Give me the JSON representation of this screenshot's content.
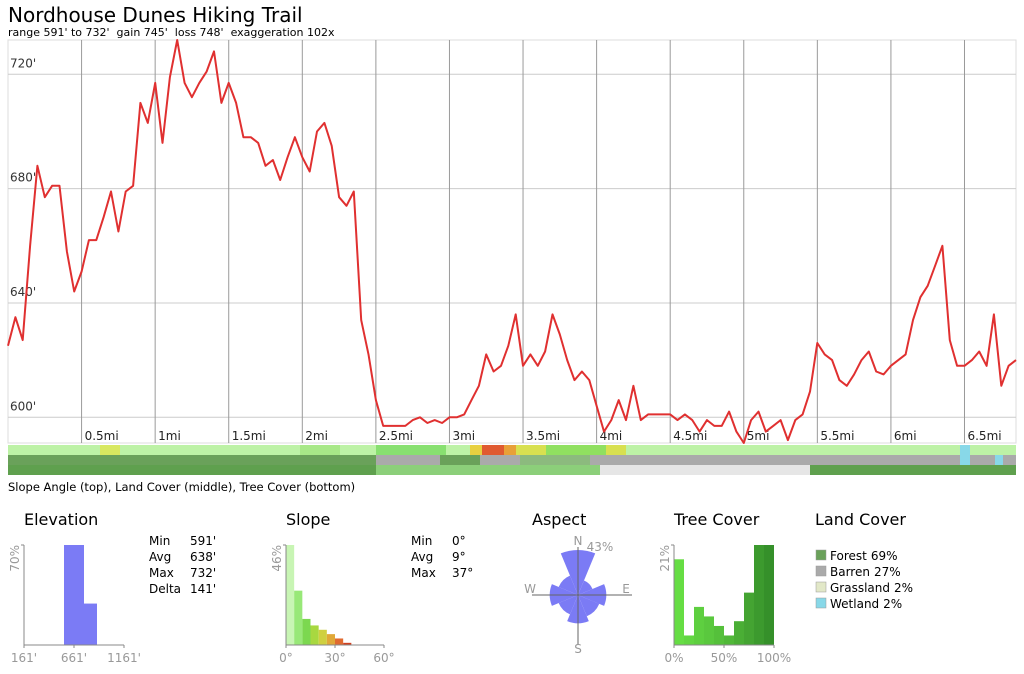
{
  "chart_data": [
    {
      "type": "line",
      "title": "Nordhouse Dunes Hiking Trail",
      "subtitle": "range 591' to 732'  gain 745'  loss 748'  exaggeration 102x",
      "caption": "Slope Angle (top), Land Cover (middle), Tree Cover (bottom)",
      "color": "#e03030",
      "x": [
        0,
        0.05,
        0.1,
        0.15,
        0.2,
        0.25,
        0.3,
        0.35,
        0.4,
        0.45,
        0.5,
        0.55,
        0.6,
        0.65,
        0.7,
        0.75,
        0.8,
        0.85,
        0.9,
        0.95,
        1,
        1.05,
        1.1,
        1.15,
        1.2,
        1.25,
        1.3,
        1.35,
        1.4,
        1.45,
        1.5,
        1.55,
        1.6,
        1.65,
        1.7,
        1.75,
        1.8,
        1.85,
        1.9,
        1.95,
        2,
        2.05,
        2.1,
        2.15,
        2.2,
        2.25,
        2.3,
        2.35,
        2.4,
        2.45,
        2.5,
        2.55,
        2.6,
        2.65,
        2.7,
        2.75,
        2.8,
        2.85,
        2.9,
        2.95,
        3,
        3.05,
        3.1,
        3.15,
        3.2,
        3.25,
        3.3,
        3.35,
        3.4,
        3.45,
        3.5,
        3.55,
        3.6,
        3.65,
        3.7,
        3.75,
        3.8,
        3.85,
        3.9,
        3.95,
        4,
        4.05,
        4.1,
        4.15,
        4.2,
        4.25,
        4.3,
        4.35,
        4.4,
        4.45,
        4.5,
        4.55,
        4.6,
        4.65,
        4.7,
        4.75,
        4.8,
        4.85,
        4.9,
        4.95,
        5,
        5.05,
        5.1,
        5.15,
        5.2,
        5.25,
        5.3,
        5.35,
        5.4,
        5.45,
        5.5,
        5.55,
        5.6,
        5.65,
        5.7,
        5.75,
        5.8,
        5.85,
        5.9,
        5.95,
        6,
        6.05,
        6.1,
        6.15,
        6.2,
        6.25,
        6.3,
        6.35,
        6.4,
        6.45,
        6.5,
        6.55,
        6.6,
        6.65,
        6.7,
        6.75,
        6.8,
        6.85
      ],
      "values": [
        625,
        635,
        627,
        660,
        688,
        677,
        681,
        681,
        658,
        644,
        651,
        662,
        662,
        670,
        679,
        665,
        679,
        681,
        710,
        703,
        717,
        696,
        719,
        732,
        717,
        712,
        717,
        721,
        728,
        710,
        717,
        710,
        698,
        698,
        696,
        688,
        690,
        683,
        691,
        698,
        691,
        686,
        700,
        703,
        695,
        677,
        674,
        679,
        634,
        622,
        606,
        597,
        597,
        597,
        597,
        599,
        600,
        598,
        599,
        598,
        600,
        600,
        601,
        606,
        611,
        622,
        616,
        618,
        625,
        636,
        618,
        622,
        618,
        623,
        636,
        629,
        620,
        613,
        616,
        613,
        604,
        595,
        599,
        606,
        599,
        611,
        599,
        601,
        601,
        601,
        601,
        599,
        601,
        599,
        595,
        599,
        597,
        597,
        602,
        595,
        591,
        599,
        602,
        595,
        597,
        599,
        592,
        599,
        601,
        609,
        626,
        622,
        620,
        613,
        611,
        615,
        620,
        623,
        616,
        615,
        618,
        620,
        622,
        634,
        642,
        646,
        653,
        660,
        627,
        618,
        618,
        620,
        623,
        618,
        636,
        611,
        618,
        620
      ],
      "xlim": [
        0,
        6.85
      ],
      "xticks": [
        {
          "value": 0.5,
          "label": "0.5mi"
        },
        {
          "value": 1,
          "label": "1mi"
        },
        {
          "value": 1.5,
          "label": "1.5mi"
        },
        {
          "value": 2,
          "label": "2mi"
        },
        {
          "value": 2.5,
          "label": "2.5mi"
        },
        {
          "value": 3,
          "label": "3mi"
        },
        {
          "value": 3.5,
          "label": "3.5mi"
        },
        {
          "value": 4,
          "label": "4mi"
        },
        {
          "value": 4.5,
          "label": "4.5mi"
        },
        {
          "value": 5,
          "label": "5mi"
        },
        {
          "value": 5.5,
          "label": "5.5mi"
        },
        {
          "value": 6,
          "label": "6mi"
        },
        {
          "value": 6.5,
          "label": "6.5mi"
        }
      ],
      "ylim": [
        591,
        732
      ],
      "yticks": [
        {
          "value": 600,
          "label": "600'"
        },
        {
          "value": 640,
          "label": "640'"
        },
        {
          "value": 680,
          "label": "680'"
        },
        {
          "value": 720,
          "label": "720'"
        }
      ],
      "grid": true
    },
    {
      "type": "histogram",
      "title": "Elevation",
      "color": "#7b7bf5",
      "bins": [
        561,
        761,
        891
      ],
      "values": [
        70,
        29
      ],
      "xlim": [
        161,
        1161
      ],
      "xticks": [
        {
          "value": 161,
          "label": "161'"
        },
        {
          "value": 661,
          "label": "661'"
        },
        {
          "value": 1161,
          "label": "1161'"
        }
      ],
      "ylim": [
        0,
        70
      ],
      "yticks": [
        {
          "value": 70,
          "label": "70%"
        }
      ],
      "stats": [
        {
          "label": "Min",
          "value": "591'"
        },
        {
          "label": "Avg",
          "value": "638'"
        },
        {
          "label": "Max",
          "value": "732'"
        },
        {
          "label": "Delta",
          "value": "141'"
        }
      ]
    },
    {
      "type": "histogram",
      "title": "Slope",
      "colors": [
        "#c8f5b4",
        "#98e878",
        "#7cd850",
        "#a8d840",
        "#cfd040",
        "#e0a838",
        "#e06a30",
        "#d04020"
      ],
      "bins": [
        0,
        5,
        10,
        15,
        20,
        25,
        30,
        35,
        40
      ],
      "values": [
        46,
        25,
        12,
        9,
        7,
        5,
        3,
        1
      ],
      "xlim": [
        0,
        60
      ],
      "xticks": [
        {
          "value": 0,
          "label": "0°"
        },
        {
          "value": 30,
          "label": "30°"
        },
        {
          "value": 60,
          "label": "60°"
        }
      ],
      "ylim": [
        0,
        46
      ],
      "yticks": [
        {
          "value": 46,
          "label": "46%"
        }
      ],
      "stats": [
        {
          "label": "Min",
          "value": "0°"
        },
        {
          "label": "Avg",
          "value": "9°"
        },
        {
          "label": "Max",
          "value": "37°"
        }
      ]
    },
    {
      "type": "rose",
      "title": "Aspect",
      "color": "#7b7bf5",
      "x": [
        0,
        45,
        90,
        135,
        180,
        225,
        270,
        315
      ],
      "values": [
        43,
        15,
        27,
        22,
        27,
        20,
        27,
        20
      ],
      "xticks": [
        {
          "value": 0,
          "label": "N"
        },
        {
          "value": 90,
          "label": "E"
        },
        {
          "value": 180,
          "label": "S"
        },
        {
          "value": 270,
          "label": "W"
        }
      ],
      "rlim": [
        0,
        43
      ],
      "rticks": [
        {
          "value": 43,
          "label": "43%"
        }
      ]
    },
    {
      "type": "histogram",
      "title": "Tree Cover",
      "colors": [
        "#66dd44",
        "#62d642",
        "#5ecf40",
        "#5ac83e",
        "#55c03b",
        "#50b838",
        "#4aae35",
        "#44a432",
        "#3c9a2e",
        "#35902a"
      ],
      "bins": [
        0,
        10,
        20,
        30,
        40,
        50,
        60,
        70,
        80,
        90,
        100
      ],
      "values": [
        18,
        2,
        8,
        6,
        4,
        2,
        5,
        11,
        21,
        21
      ],
      "xlim": [
        0,
        100
      ],
      "xticks": [
        {
          "value": 0,
          "label": "0%"
        },
        {
          "value": 50,
          "label": "50%"
        },
        {
          "value": 100,
          "label": "100%"
        }
      ],
      "ylim": [
        0,
        21
      ],
      "yticks": [
        {
          "value": 21,
          "label": "21%"
        }
      ]
    },
    {
      "type": "legend",
      "title": "Land Cover",
      "categories": [
        "Forest",
        "Barren",
        "Grassland",
        "Wetland"
      ],
      "values": [
        69,
        27,
        2,
        2
      ],
      "value_labels": [
        "69%",
        "27%",
        "2%",
        "2%"
      ],
      "colors": [
        "#6aa15a",
        "#aaaaaa",
        "#e2e8c8",
        "#88d8e8"
      ]
    }
  ]
}
